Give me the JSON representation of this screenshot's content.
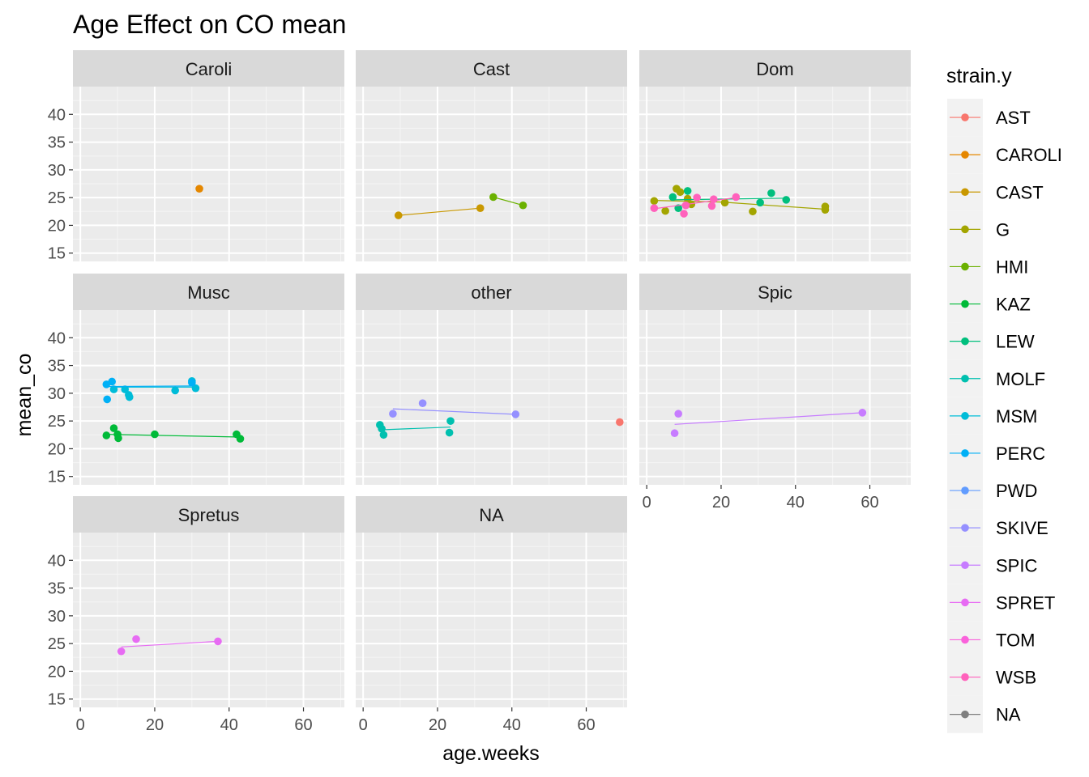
{
  "chart_data": {
    "type": "scatter",
    "title": "Age Effect on CO mean",
    "xlabel": "age.weeks",
    "ylabel": "mean_co",
    "xlim": [
      -2,
      71
    ],
    "ylim": [
      13.5,
      45
    ],
    "x_ticks": [
      0,
      20,
      40,
      60
    ],
    "y_ticks": [
      15,
      20,
      25,
      30,
      35,
      40
    ],
    "grid": true,
    "legend": {
      "title": "strain.y",
      "position": "right",
      "entries": [
        {
          "label": "AST",
          "color": "#F8766D"
        },
        {
          "label": "CAROLI",
          "color": "#E58700"
        },
        {
          "label": "CAST",
          "color": "#C99800"
        },
        {
          "label": "G",
          "color": "#A3A500"
        },
        {
          "label": "HMI",
          "color": "#6BB100"
        },
        {
          "label": "KAZ",
          "color": "#00BA38"
        },
        {
          "label": "LEW",
          "color": "#00BF7D"
        },
        {
          "label": "MOLF",
          "color": "#00C0AF"
        },
        {
          "label": "MSM",
          "color": "#00BCD8"
        },
        {
          "label": "PERC",
          "color": "#00B0F6"
        },
        {
          "label": "PWD",
          "color": "#619CFF"
        },
        {
          "label": "SKIVE",
          "color": "#9590FF"
        },
        {
          "label": "SPIC",
          "color": "#C77CFF"
        },
        {
          "label": "SPRET",
          "color": "#E76BF3"
        },
        {
          "label": "TOM",
          "color": "#FA62DB"
        },
        {
          "label": "WSB",
          "color": "#FF62BC"
        },
        {
          "label": "NA",
          "color": "#7F7F7F"
        }
      ]
    },
    "facets": [
      {
        "label": "Caroli",
        "series": [
          {
            "strain": "CAROLI",
            "points": [
              [
                32,
                26.6
              ]
            ]
          }
        ]
      },
      {
        "label": "Cast",
        "series": [
          {
            "strain": "CAST",
            "points": [
              [
                9.5,
                21.8
              ],
              [
                31.5,
                23.1
              ]
            ],
            "fit": [
              [
                9.5,
                21.8
              ],
              [
                31.5,
                23.1
              ]
            ]
          },
          {
            "strain": "HMI",
            "points": [
              [
                35,
                25.1
              ],
              [
                43,
                23.6
              ]
            ],
            "fit": [
              [
                35,
                25.1
              ],
              [
                43,
                23.6
              ]
            ]
          }
        ]
      },
      {
        "label": "Dom",
        "series": [
          {
            "strain": "G",
            "points": [
              [
                2,
                24.4
              ],
              [
                5,
                22.6
              ],
              [
                8,
                26.6
              ],
              [
                9,
                26.0
              ],
              [
                11,
                24.8
              ],
              [
                12,
                23.8
              ],
              [
                21,
                24.1
              ],
              [
                28.5,
                22.5
              ],
              [
                48,
                23.4
              ],
              [
                48,
                22.8
              ]
            ],
            "fit": [
              [
                2,
                24.5
              ],
              [
                20,
                24.2
              ],
              [
                48,
                22.9
              ]
            ]
          },
          {
            "strain": "LEW",
            "points": [
              [
                7,
                25.1
              ],
              [
                8.5,
                23.1
              ],
              [
                11,
                26.2
              ],
              [
                30.5,
                24.1
              ],
              [
                33.5,
                25.8
              ],
              [
                37.5,
                24.6
              ]
            ],
            "fit": [
              [
                7,
                24.6
              ],
              [
                37.5,
                24.9
              ]
            ]
          },
          {
            "strain": "WSB",
            "points": [
              [
                2,
                23.1
              ],
              [
                10,
                22.1
              ],
              [
                10.5,
                23.6
              ],
              [
                13.5,
                25.0
              ],
              [
                17.5,
                23.5
              ],
              [
                18,
                24.7
              ],
              [
                24,
                25.1
              ]
            ],
            "fit": [
              [
                2,
                23.0
              ],
              [
                24,
                25.0
              ]
            ]
          }
        ]
      },
      {
        "label": "Musc",
        "series": [
          {
            "strain": "KAZ",
            "points": [
              [
                7,
                22.4
              ],
              [
                9,
                23.7
              ],
              [
                10,
                22.6
              ],
              [
                10.2,
                21.9
              ],
              [
                20,
                22.6
              ],
              [
                42,
                22.6
              ],
              [
                43,
                21.8
              ]
            ],
            "fit": [
              [
                7,
                22.6
              ],
              [
                43,
                22.1
              ]
            ]
          },
          {
            "strain": "MSM",
            "points": [
              [
                9,
                30.7
              ],
              [
                12,
                30.7
              ],
              [
                13,
                29.7
              ],
              [
                13.2,
                29.3
              ],
              [
                25.5,
                30.5
              ],
              [
                30,
                32.2
              ],
              [
                31,
                30.9
              ]
            ],
            "fit": [
              [
                9,
                31.1
              ],
              [
                31,
                31.1
              ]
            ]
          },
          {
            "strain": "PERC",
            "points": [
              [
                7,
                31.6
              ],
              [
                7.2,
                28.9
              ],
              [
                8.5,
                32.1
              ],
              [
                30,
                31.9
              ]
            ],
            "fit": [
              [
                7,
                31.2
              ],
              [
                30,
                31.3
              ]
            ]
          }
        ]
      },
      {
        "label": "other",
        "series": [
          {
            "strain": "AST",
            "points": [
              [
                69,
                24.8
              ]
            ]
          },
          {
            "strain": "MOLF",
            "points": [
              [
                4.5,
                24.3
              ],
              [
                5,
                23.6
              ],
              [
                5.5,
                22.5
              ],
              [
                23.5,
                25.0
              ],
              [
                23.2,
                22.9
              ]
            ],
            "fit": [
              [
                4.5,
                23.4
              ],
              [
                23.5,
                23.9
              ]
            ]
          },
          {
            "strain": "SKIVE",
            "points": [
              [
                8,
                26.3
              ],
              [
                16,
                28.2
              ],
              [
                41,
                26.2
              ]
            ],
            "fit": [
              [
                8,
                27.2
              ],
              [
                41,
                26.2
              ]
            ]
          }
        ]
      },
      {
        "label": "Spic",
        "series": [
          {
            "strain": "SPIC",
            "points": [
              [
                7.5,
                22.8
              ],
              [
                8.5,
                26.3
              ],
              [
                58,
                26.5
              ]
            ],
            "fit": [
              [
                7.5,
                24.4
              ],
              [
                58,
                26.5
              ]
            ]
          }
        ]
      },
      {
        "label": "Spretus",
        "series": [
          {
            "strain": "SPRET",
            "points": [
              [
                11,
                23.6
              ],
              [
                15,
                25.8
              ],
              [
                37,
                25.4
              ]
            ],
            "fit": [
              [
                11,
                24.4
              ],
              [
                37,
                25.4
              ]
            ]
          }
        ]
      },
      {
        "label": "NA",
        "series": []
      }
    ]
  }
}
